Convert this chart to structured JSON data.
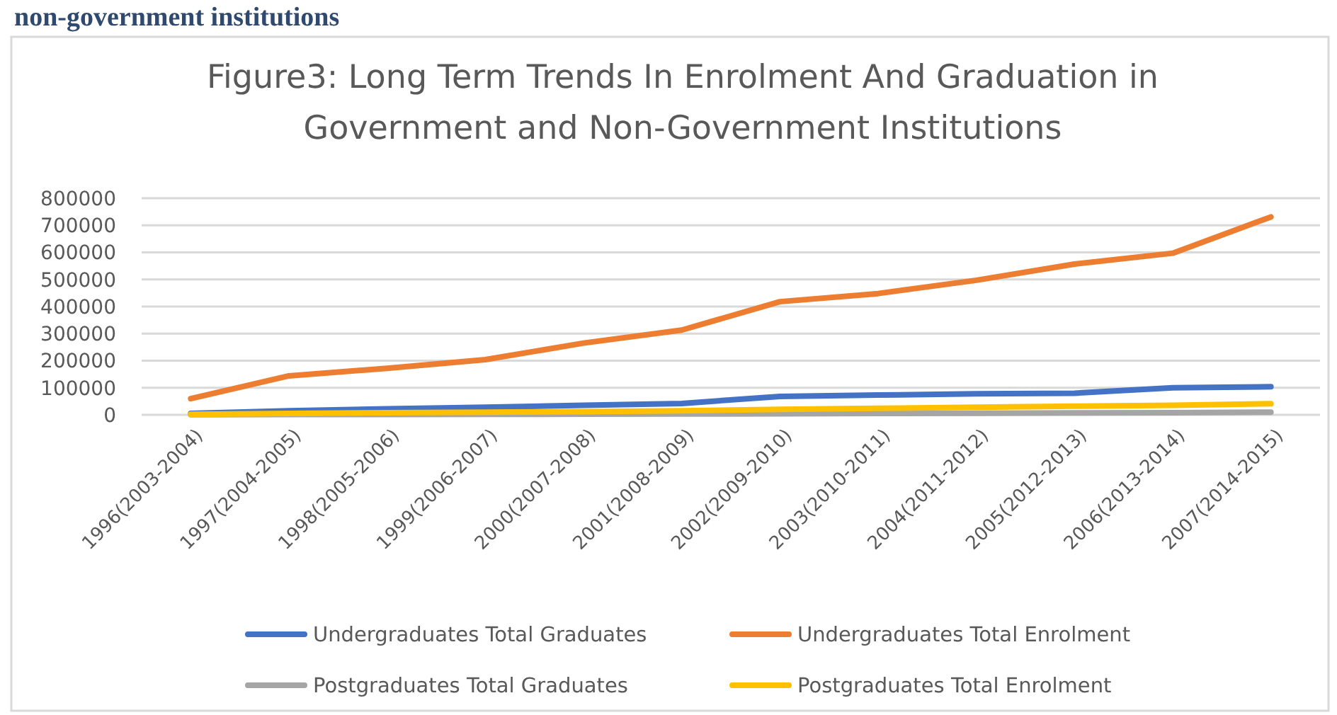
{
  "chart_data": {
    "type": "line",
    "title": "Figure3: Long Term Trends In Enrolment And Graduation in Government and Non-Government Institutions",
    "annotations": [
      "non-government institutions"
    ],
    "categories": [
      "1996(2003-2004)",
      "1997(2004-2005)",
      "1998(2005-2006)",
      "1999(2006-2007)",
      "2000(2007-2008)",
      "2001(2008-2009)",
      "2002(2009-2010)",
      "2003(2010-2011)",
      "2004(2011-2012)",
      "2005(2012-2013)",
      "2006(2013-2014)",
      "2007(2014-2015)"
    ],
    "series": [
      {
        "name": "Undergraduates Total Graduates",
        "color": "#4472c4",
        "values": [
          5000,
          15000,
          22000,
          28000,
          35000,
          42000,
          68000,
          73000,
          78000,
          80000,
          100000,
          104000
        ]
      },
      {
        "name": "Undergraduates Total Enrolment",
        "color": "#ed7d31",
        "values": [
          60000,
          144000,
          172000,
          204000,
          265000,
          313000,
          418000,
          448000,
          497000,
          557000,
          597000,
          731000
        ]
      },
      {
        "name": "Postgraduates Total Graduates",
        "color": "#a5a5a5",
        "values": [
          500,
          1000,
          1500,
          2000,
          2500,
          3000,
          4000,
          5000,
          6000,
          7000,
          8000,
          10000
        ]
      },
      {
        "name": "Postgraduates Total  Enrolment",
        "color": "#ffc000",
        "values": [
          2000,
          5000,
          8000,
          10000,
          12000,
          15000,
          20000,
          24000,
          28000,
          32000,
          35000,
          41000
        ]
      }
    ],
    "ylim": [
      0,
      800000
    ],
    "yticks": [
      0,
      100000,
      200000,
      300000,
      400000,
      500000,
      600000,
      700000,
      800000
    ],
    "grid": "y",
    "legend": "bottom",
    "marker": "none",
    "line_style": "solid"
  }
}
